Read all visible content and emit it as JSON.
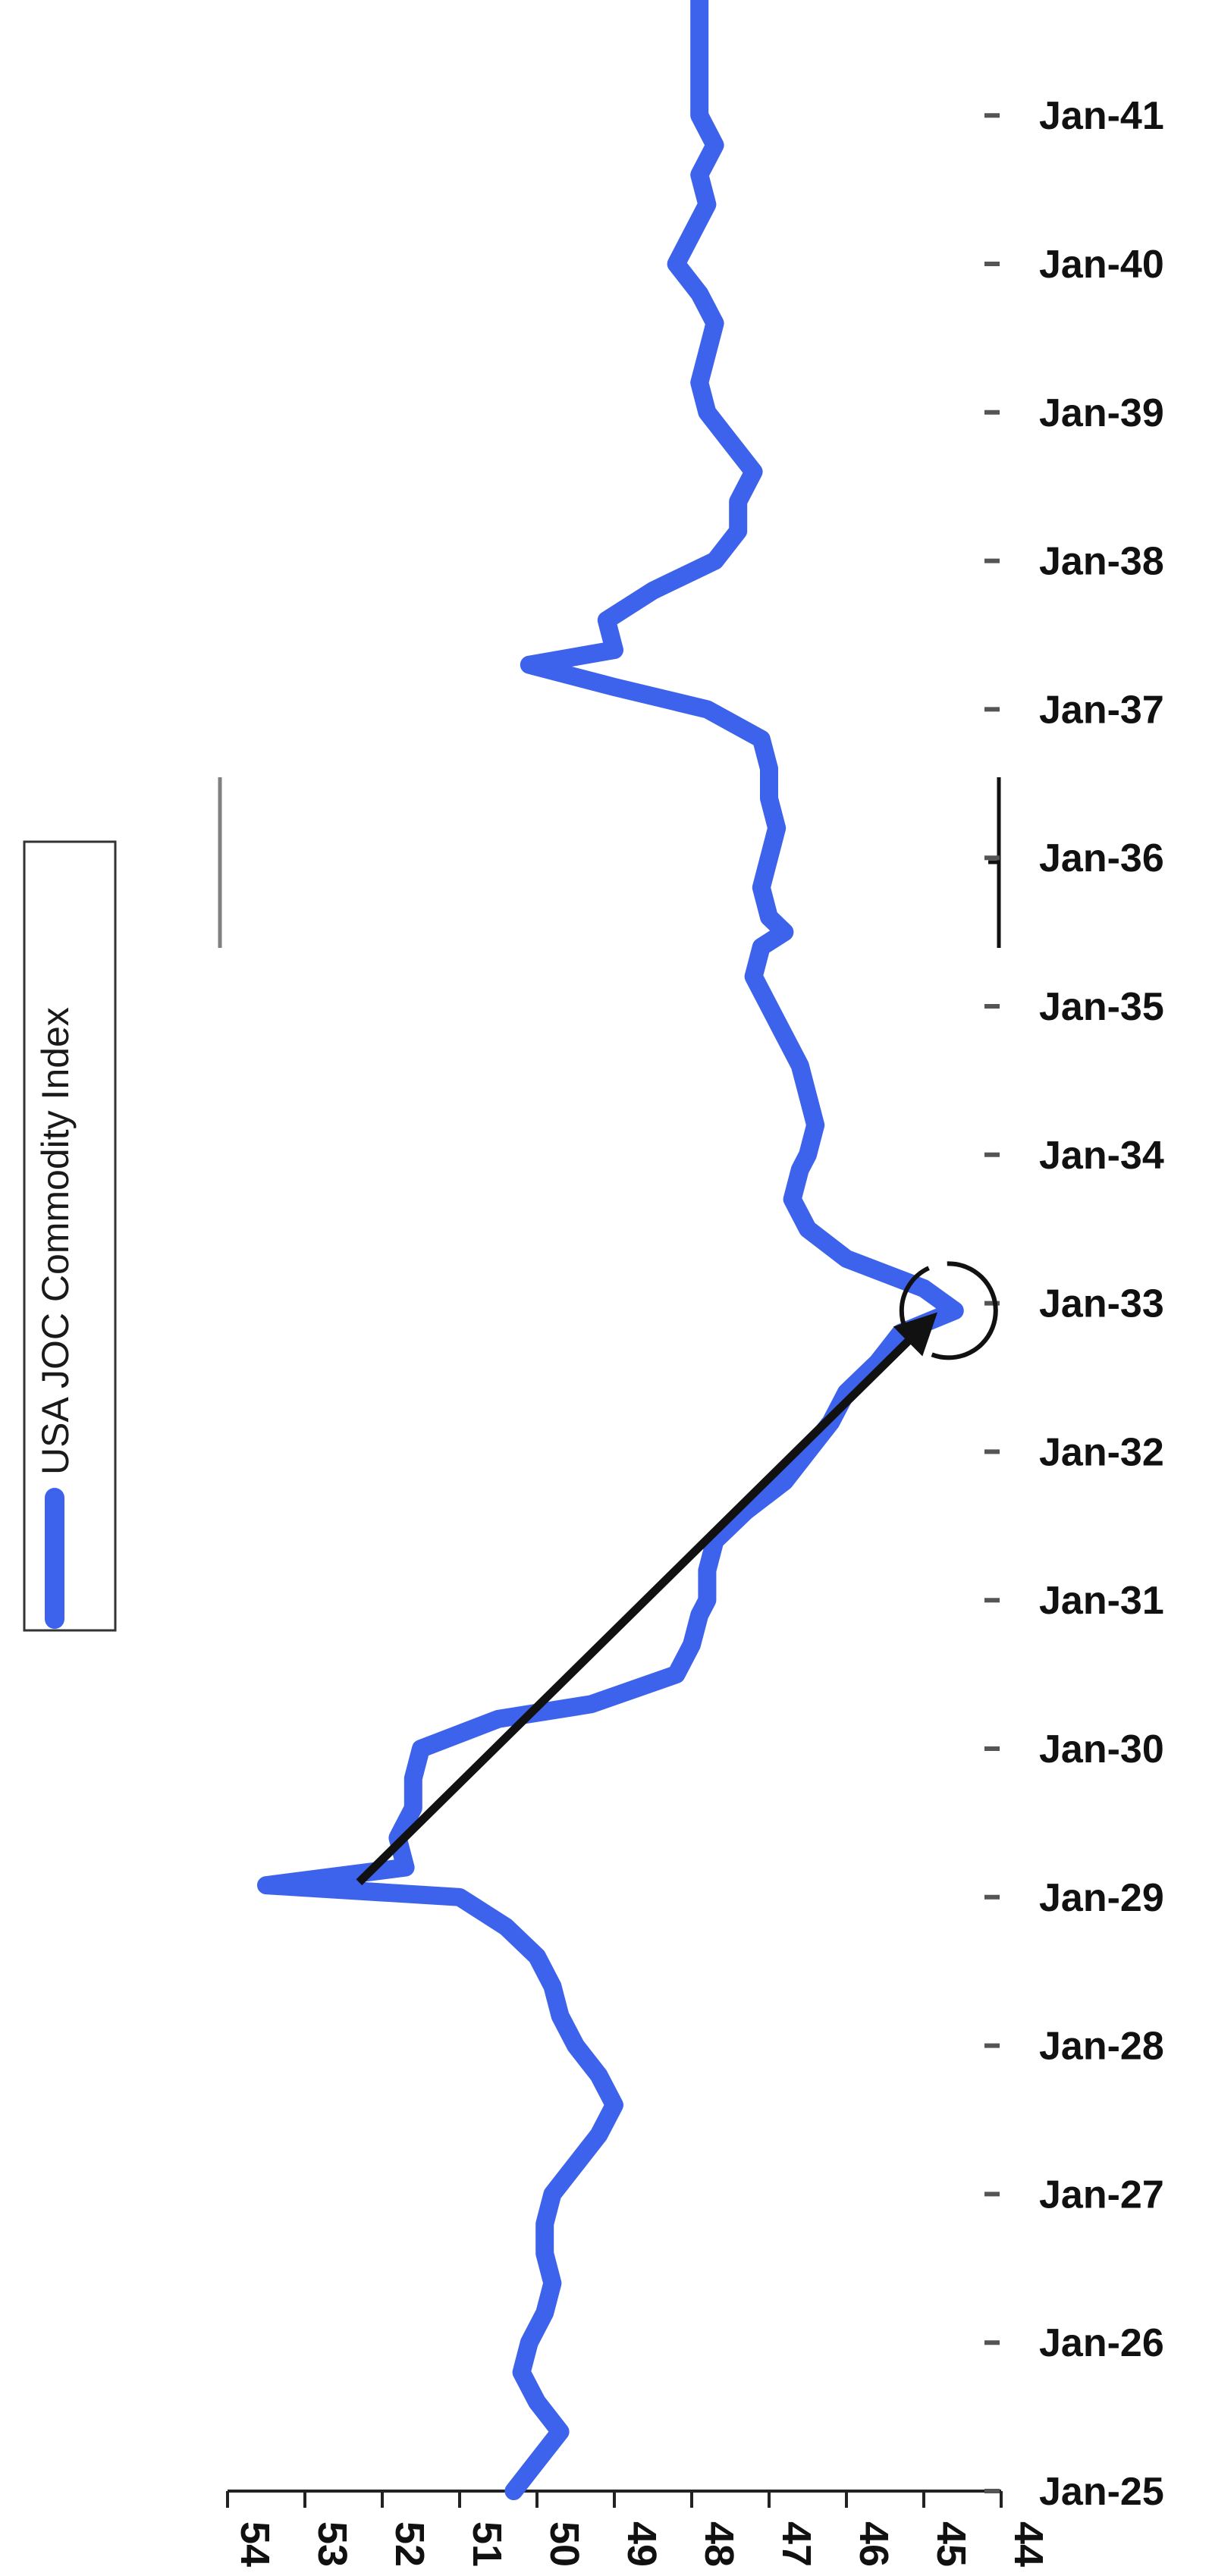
{
  "chart_data": {
    "type": "line",
    "orientation": "rotated-90-clockwise",
    "title": "",
    "xlabel": "",
    "ylabel": "",
    "x_ticks": [
      "Jan-25",
      "Jan-26",
      "Jan-27",
      "Jan-28",
      "Jan-29",
      "Jan-30",
      "Jan-31",
      "Jan-32",
      "Jan-33",
      "Jan-34",
      "Jan-35",
      "Jan-36",
      "Jan-37",
      "Jan-38",
      "Jan-39",
      "Jan-40",
      "Jan-41"
    ],
    "y_ticks": [
      54,
      53,
      52,
      51,
      50,
      49,
      48,
      47,
      46,
      45,
      44
    ],
    "ylim": [
      44,
      54
    ],
    "xlim": [
      1925.0,
      1941.9
    ],
    "grid": false,
    "legend": {
      "position": "top-left",
      "entries": [
        "USA JOC Commodity Index"
      ]
    },
    "series": [
      {
        "name": "USA JOC Commodity Index",
        "color": "#3d63ec",
        "points": [
          [
            1925.0,
            50.3
          ],
          [
            1925.2,
            50.0
          ],
          [
            1925.4,
            49.7
          ],
          [
            1925.6,
            50.0
          ],
          [
            1925.8,
            50.2
          ],
          [
            1926.0,
            50.1
          ],
          [
            1926.2,
            49.9
          ],
          [
            1926.4,
            49.8
          ],
          [
            1926.6,
            49.9
          ],
          [
            1926.8,
            49.9
          ],
          [
            1927.0,
            49.8
          ],
          [
            1927.2,
            49.5
          ],
          [
            1927.4,
            49.2
          ],
          [
            1927.6,
            49.0
          ],
          [
            1927.8,
            49.2
          ],
          [
            1928.0,
            49.5
          ],
          [
            1928.2,
            49.7
          ],
          [
            1928.4,
            49.8
          ],
          [
            1928.6,
            50.0
          ],
          [
            1928.8,
            50.4
          ],
          [
            1929.0,
            51.0
          ],
          [
            1929.08,
            53.5
          ],
          [
            1929.2,
            51.7
          ],
          [
            1929.4,
            51.8
          ],
          [
            1929.6,
            51.6
          ],
          [
            1929.8,
            51.6
          ],
          [
            1930.0,
            51.5
          ],
          [
            1930.2,
            50.5
          ],
          [
            1930.3,
            49.3
          ],
          [
            1930.5,
            48.2
          ],
          [
            1930.7,
            48.0
          ],
          [
            1930.9,
            47.9
          ],
          [
            1931.0,
            47.8
          ],
          [
            1931.2,
            47.8
          ],
          [
            1931.4,
            47.7
          ],
          [
            1931.6,
            47.3
          ],
          [
            1931.8,
            46.8
          ],
          [
            1932.0,
            46.5
          ],
          [
            1932.2,
            46.2
          ],
          [
            1932.4,
            46.0
          ],
          [
            1932.6,
            45.6
          ],
          [
            1932.8,
            45.3
          ],
          [
            1932.95,
            44.6
          ],
          [
            1933.1,
            45.0
          ],
          [
            1933.3,
            46.0
          ],
          [
            1933.5,
            46.5
          ],
          [
            1933.7,
            46.7
          ],
          [
            1933.9,
            46.6
          ],
          [
            1934.0,
            46.5
          ],
          [
            1934.2,
            46.4
          ],
          [
            1934.4,
            46.5
          ],
          [
            1934.6,
            46.6
          ],
          [
            1934.8,
            46.8
          ],
          [
            1935.0,
            47.0
          ],
          [
            1935.2,
            47.2
          ],
          [
            1935.4,
            47.1
          ],
          [
            1935.5,
            46.8
          ],
          [
            1935.6,
            47.0
          ],
          [
            1935.8,
            47.1
          ],
          [
            1936.0,
            47.0
          ],
          [
            1936.2,
            46.9
          ],
          [
            1936.4,
            47.0
          ],
          [
            1936.6,
            47.0
          ],
          [
            1936.8,
            47.1
          ],
          [
            1937.0,
            47.8
          ],
          [
            1937.15,
            49.0
          ],
          [
            1937.3,
            50.1
          ],
          [
            1937.4,
            49.0
          ],
          [
            1937.6,
            49.1
          ],
          [
            1937.8,
            48.5
          ],
          [
            1938.0,
            47.7
          ],
          [
            1938.2,
            47.4
          ],
          [
            1938.4,
            47.4
          ],
          [
            1938.6,
            47.2
          ],
          [
            1938.8,
            47.5
          ],
          [
            1939.0,
            47.8
          ],
          [
            1939.2,
            47.9
          ],
          [
            1939.4,
            47.8
          ],
          [
            1939.6,
            47.7
          ],
          [
            1939.8,
            47.9
          ],
          [
            1940.0,
            48.2
          ],
          [
            1940.2,
            48.0
          ],
          [
            1940.4,
            47.8
          ],
          [
            1940.6,
            47.9
          ],
          [
            1940.8,
            47.7
          ],
          [
            1941.0,
            47.9
          ],
          [
            1941.2,
            47.9
          ],
          [
            1941.9,
            47.9
          ]
        ]
      }
    ],
    "annotations": [
      {
        "type": "arrow",
        "from": [
          1929.1,
          52.3
        ],
        "to": [
          1932.9,
          44.9
        ],
        "color": "#111111"
      },
      {
        "type": "circle",
        "at": [
          1932.95,
          44.6
        ],
        "color": "#111111"
      },
      {
        "type": "bracket",
        "x_range": [
          1935.5,
          1936.8
        ],
        "color": "#111111"
      },
      {
        "type": "marker-line",
        "x_range": [
          1935.5,
          1936.8
        ],
        "y": 54,
        "color": "#808080"
      }
    ]
  }
}
